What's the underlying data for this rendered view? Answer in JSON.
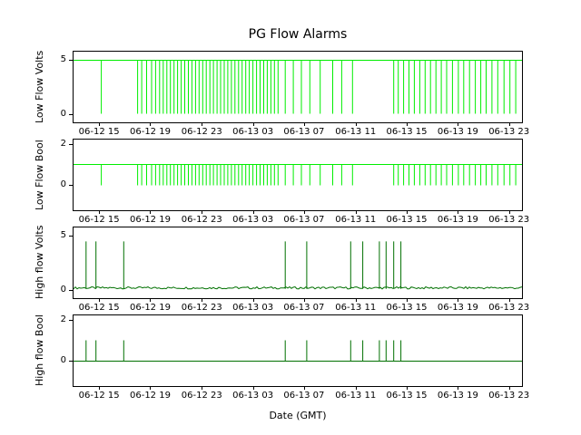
{
  "title": "PG Flow Alarms",
  "xlabel": "Date (GMT)",
  "axis_color": "#000000",
  "x_ticks": {
    "labels": [
      "06-12 15",
      "06-12 19",
      "06-12 23",
      "06-13 03",
      "06-13 07",
      "06-13 11",
      "06-13 15",
      "06-13 19",
      "06-13 23"
    ],
    "fractions": [
      0.057,
      0.171,
      0.286,
      0.4,
      0.514,
      0.629,
      0.743,
      0.857,
      0.971
    ]
  },
  "chart_data": [
    {
      "type": "line",
      "name": "low-flow-volts",
      "ylabel": "Low Flow Volts",
      "color": "#00ee00",
      "baseline": 5,
      "spike_value": 0,
      "ylim": [
        -0.8,
        5.8
      ],
      "yticks": [
        0,
        5
      ],
      "noise": 0,
      "spikes": [
        0.062,
        0.143,
        0.152,
        0.163,
        0.174,
        0.183,
        0.192,
        0.2,
        0.208,
        0.216,
        0.224,
        0.232,
        0.24,
        0.248,
        0.256,
        0.264,
        0.272,
        0.28,
        0.288,
        0.296,
        0.304,
        0.312,
        0.32,
        0.328,
        0.336,
        0.344,
        0.352,
        0.36,
        0.368,
        0.376,
        0.384,
        0.392,
        0.4,
        0.408,
        0.416,
        0.424,
        0.432,
        0.44,
        0.448,
        0.456,
        0.472,
        0.49,
        0.508,
        0.527,
        0.55,
        0.578,
        0.598,
        0.622,
        0.714,
        0.724,
        0.736,
        0.748,
        0.76,
        0.772,
        0.784,
        0.796,
        0.808,
        0.82,
        0.832,
        0.845,
        0.858,
        0.87,
        0.883,
        0.896,
        0.908,
        0.92,
        0.933,
        0.946,
        0.96,
        0.973,
        0.986
      ]
    },
    {
      "type": "line",
      "name": "low-flow-bool",
      "ylabel": "Low Flow Bool",
      "color": "#00ee00",
      "baseline": 1,
      "spike_value": 0,
      "ylim": [
        -1.2,
        2.2
      ],
      "yticks": [
        0,
        2
      ],
      "noise": 0,
      "spikes": [
        0.062,
        0.143,
        0.152,
        0.163,
        0.174,
        0.183,
        0.192,
        0.2,
        0.208,
        0.216,
        0.224,
        0.232,
        0.24,
        0.248,
        0.256,
        0.264,
        0.272,
        0.28,
        0.288,
        0.296,
        0.304,
        0.312,
        0.32,
        0.328,
        0.336,
        0.344,
        0.352,
        0.36,
        0.368,
        0.376,
        0.384,
        0.392,
        0.4,
        0.408,
        0.416,
        0.424,
        0.432,
        0.44,
        0.448,
        0.456,
        0.472,
        0.49,
        0.508,
        0.527,
        0.55,
        0.578,
        0.598,
        0.622,
        0.714,
        0.724,
        0.736,
        0.748,
        0.76,
        0.772,
        0.784,
        0.796,
        0.808,
        0.82,
        0.832,
        0.845,
        0.858,
        0.87,
        0.883,
        0.896,
        0.908,
        0.92,
        0.933,
        0.946,
        0.96,
        0.973,
        0.986
      ]
    },
    {
      "type": "line",
      "name": "high-flow-volts",
      "ylabel": "High flow Volts",
      "color": "#007000",
      "baseline": 0.06,
      "spike_value": 4.5,
      "ylim": [
        -0.8,
        5.8
      ],
      "yticks": [
        0,
        5
      ],
      "noise": 0.2,
      "spikes": [
        0.028,
        0.05,
        0.112,
        0.472,
        0.52,
        0.618,
        0.645,
        0.682,
        0.697,
        0.714,
        0.73
      ]
    },
    {
      "type": "line",
      "name": "high-flow-bool",
      "ylabel": "High flow Bool",
      "color": "#007000",
      "baseline": 0,
      "spike_value": 1,
      "ylim": [
        -1.2,
        2.2
      ],
      "yticks": [
        0,
        2
      ],
      "noise": 0,
      "spikes": [
        0.028,
        0.05,
        0.112,
        0.472,
        0.52,
        0.618,
        0.645,
        0.682,
        0.697,
        0.714,
        0.73
      ]
    }
  ]
}
